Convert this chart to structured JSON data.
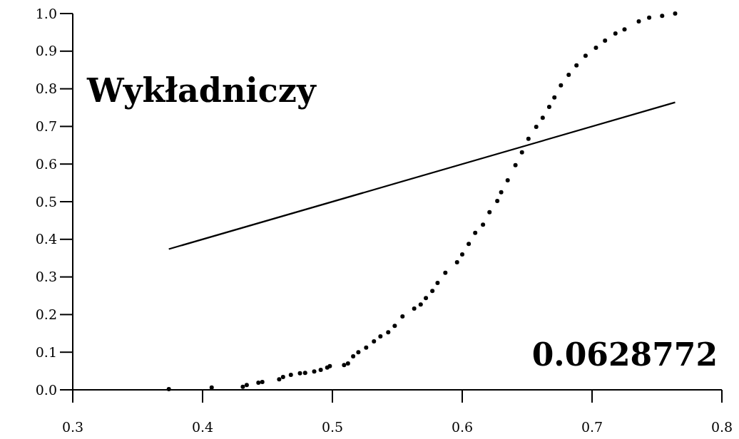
{
  "chart_data": {
    "type": "scatter",
    "title": "Wykładniczy",
    "annotations": [
      "0.0628772"
    ],
    "marker": "circle",
    "grid": false,
    "xlim": [
      0.3,
      0.8
    ],
    "xticks": [
      {
        "value": 0.3,
        "label": "0.3"
      },
      {
        "value": 0.4,
        "label": "0.4"
      },
      {
        "value": 0.5,
        "label": "0.5"
      },
      {
        "value": 0.6,
        "label": "0.6"
      },
      {
        "value": 0.7,
        "label": "0.7"
      },
      {
        "value": 0.8,
        "label": "0.8"
      }
    ],
    "ylim": [
      0,
      1
    ],
    "yticks": [
      {
        "value": 0,
        "label": "0.0"
      },
      {
        "value": 0.1,
        "label": "0.1"
      },
      {
        "value": 0.2,
        "label": "0.2"
      },
      {
        "value": 0.3,
        "label": "0.3"
      },
      {
        "value": 0.4,
        "label": "0.4"
      },
      {
        "value": 0.5,
        "label": "0.5"
      },
      {
        "value": 0.6,
        "label": "0.6"
      },
      {
        "value": 0.7,
        "label": "0.7"
      },
      {
        "value": 0.8,
        "label": "0.8"
      },
      {
        "value": 0.9,
        "label": "0.9"
      },
      {
        "value": 1.0,
        "label": "1.0"
      }
    ],
    "series": [
      {
        "color": "#000000",
        "x": [
          0.374,
          0.407,
          0.431,
          0.434,
          0.443,
          0.446,
          0.459,
          0.462,
          0.468,
          0.475,
          0.479,
          0.486,
          0.491,
          0.496,
          0.498,
          0.509,
          0.512,
          0.516,
          0.52,
          0.526,
          0.532,
          0.537,
          0.543,
          0.548,
          0.554,
          0.563,
          0.568,
          0.572,
          0.577,
          0.581,
          0.587,
          0.596,
          0.6,
          0.605,
          0.61,
          0.616,
          0.621,
          0.627,
          0.63,
          0.635,
          0.641,
          0.646,
          0.651,
          0.657,
          0.662,
          0.667,
          0.671,
          0.676,
          0.682,
          0.688,
          0.695,
          0.703,
          0.71,
          0.718,
          0.725,
          0.736,
          0.744,
          0.754,
          0.764
        ],
        "values": [
          0.002,
          0.006,
          0.008,
          0.013,
          0.019,
          0.021,
          0.028,
          0.034,
          0.04,
          0.044,
          0.045,
          0.049,
          0.053,
          0.059,
          0.063,
          0.066,
          0.07,
          0.089,
          0.1,
          0.112,
          0.129,
          0.142,
          0.153,
          0.17,
          0.195,
          0.216,
          0.227,
          0.244,
          0.263,
          0.284,
          0.311,
          0.339,
          0.36,
          0.388,
          0.417,
          0.439,
          0.472,
          0.502,
          0.525,
          0.557,
          0.597,
          0.631,
          0.667,
          0.699,
          0.723,
          0.752,
          0.777,
          0.809,
          0.837,
          0.862,
          0.888,
          0.909,
          0.928,
          0.947,
          0.958,
          0.979,
          0.989,
          0.994,
          1.0
        ]
      },
      {
        "type": "line",
        "marker": "none",
        "color": "#000000",
        "x": [
          0.374,
          0.764
        ],
        "values": [
          0.374,
          0.764
        ]
      }
    ]
  }
}
